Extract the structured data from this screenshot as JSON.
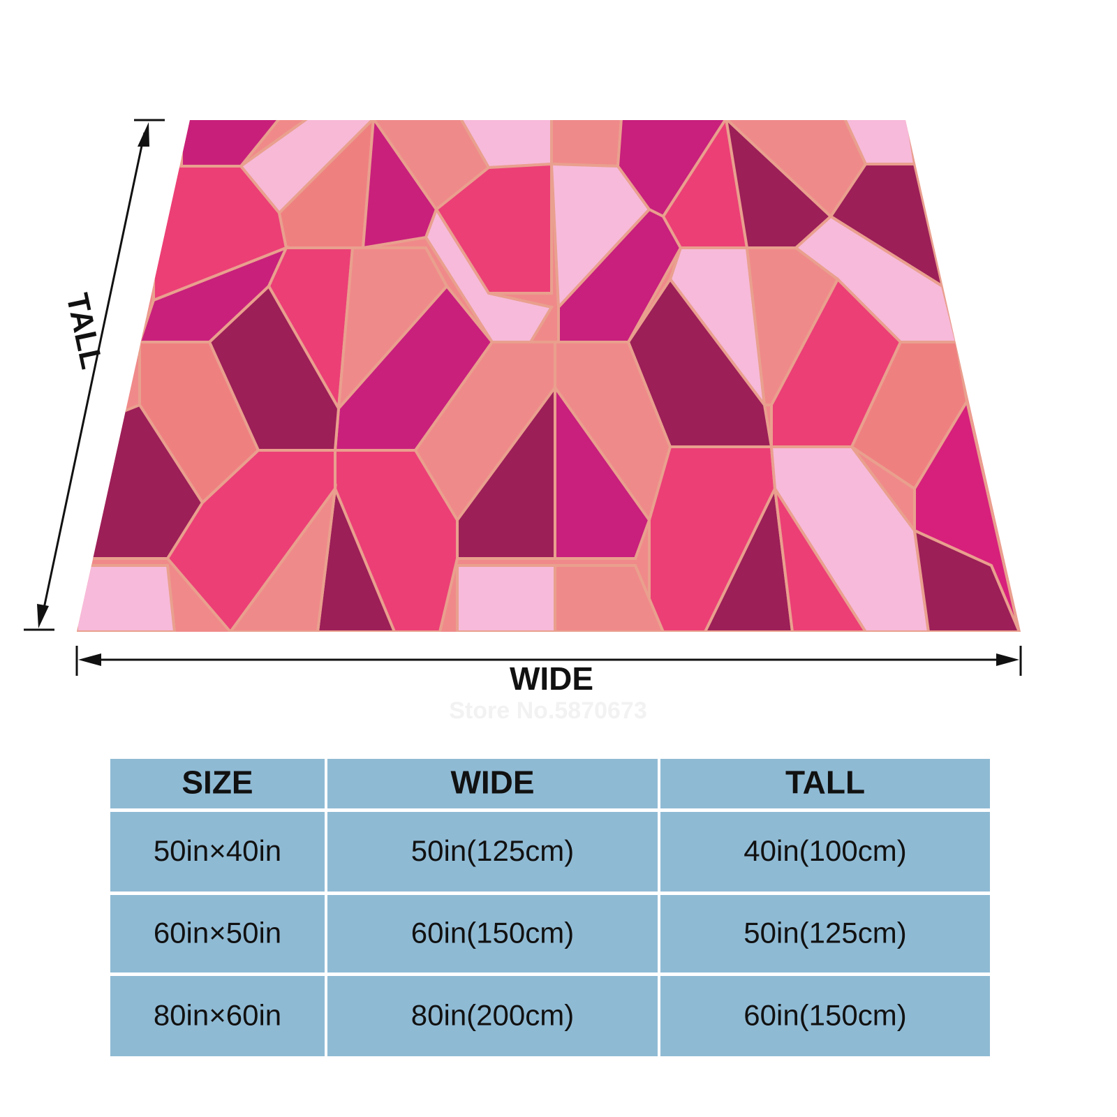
{
  "dimension_labels": {
    "tall": "TALL",
    "wide": "WIDE"
  },
  "watermark": "Store No.5870673",
  "table": {
    "header": [
      "SIZE",
      "WIDE",
      "TALL"
    ],
    "rows": [
      [
        "50in×40in",
        "50in(125cm)",
        "40in(100cm)"
      ],
      [
        "60in×50in",
        "60in(150cm)",
        "50in(125cm)"
      ],
      [
        "80in×60in",
        "80in(200cm)",
        "60in(150cm)"
      ]
    ]
  }
}
